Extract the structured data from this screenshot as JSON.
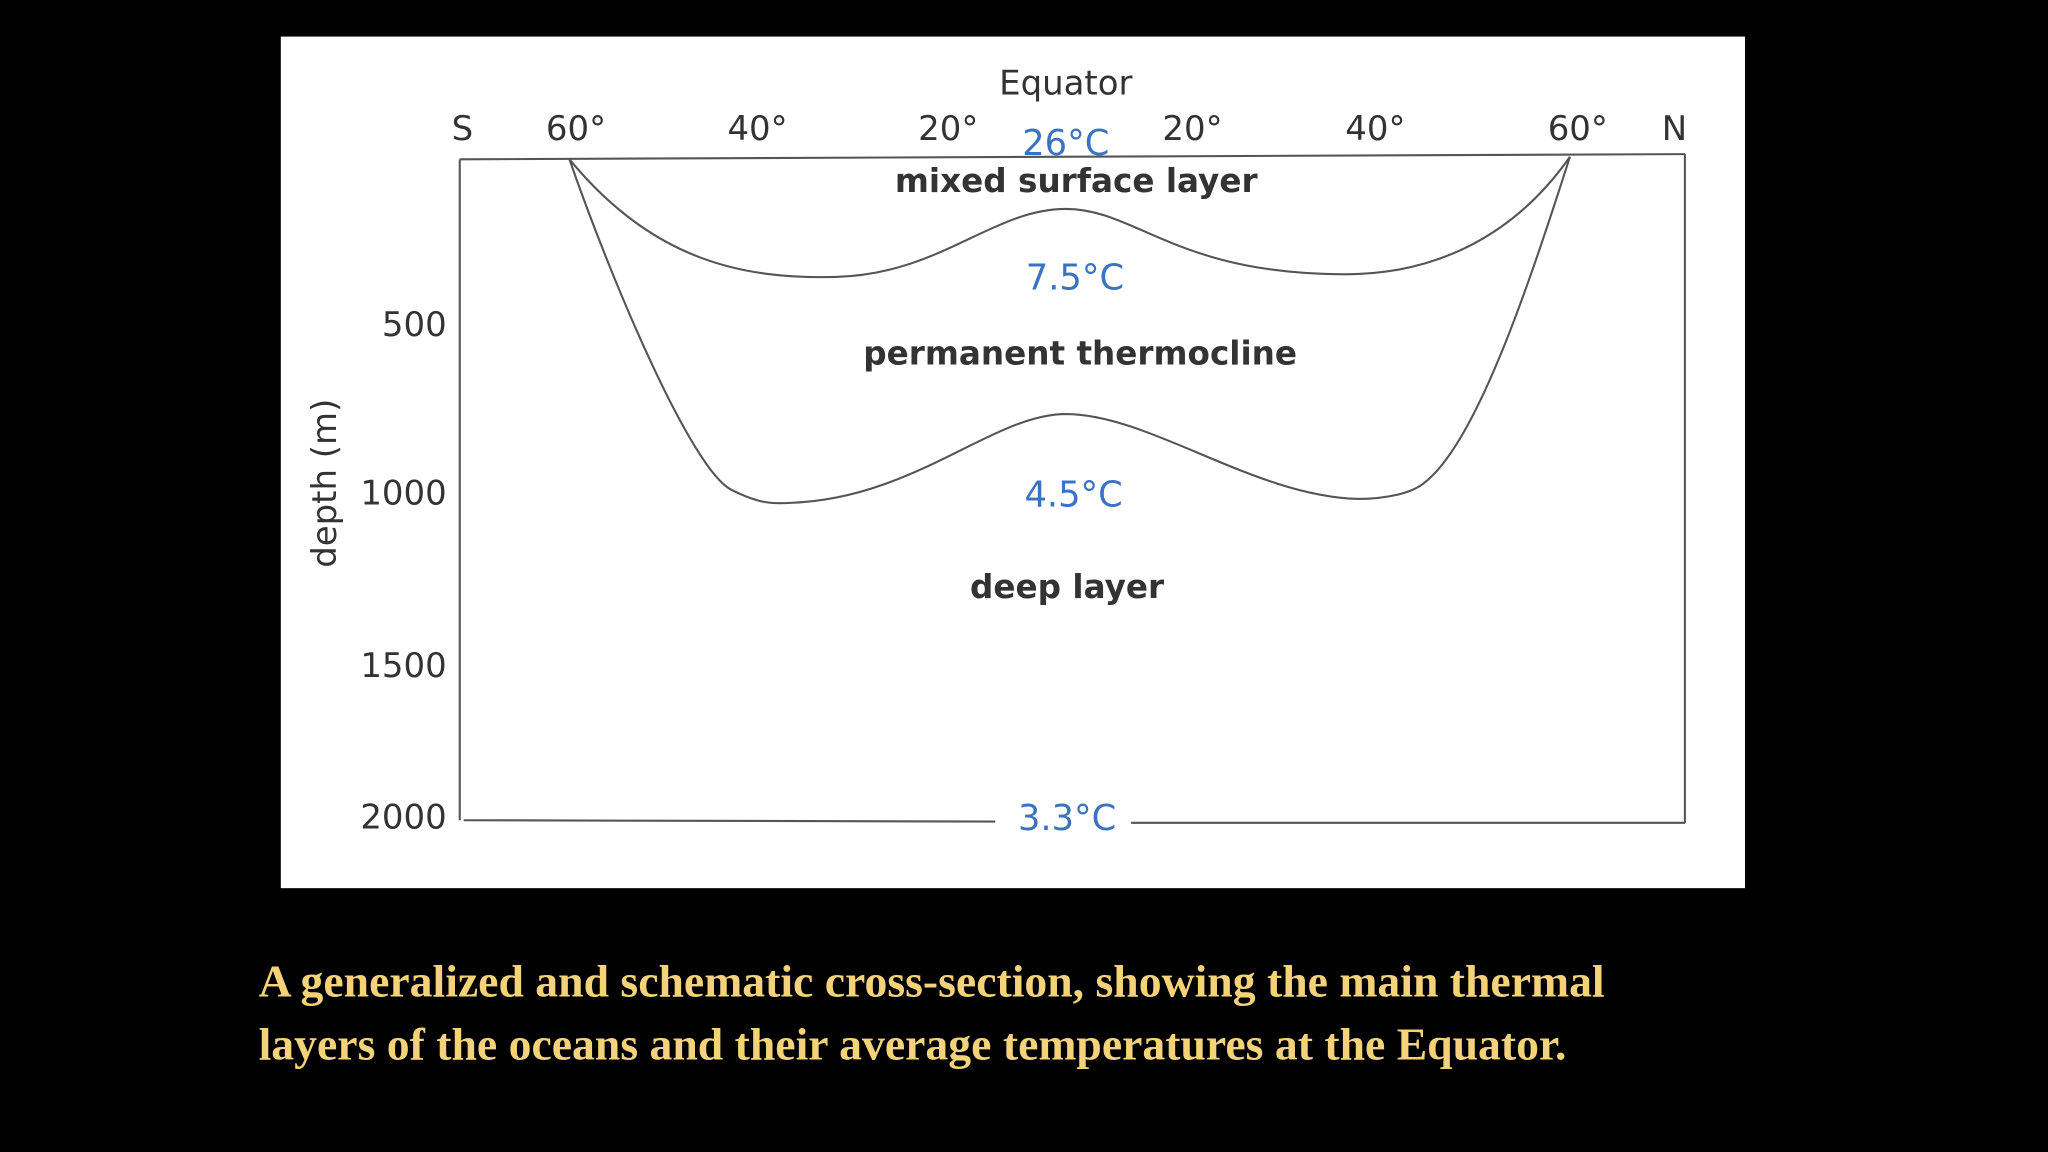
{
  "diagram": {
    "equator_label": "Equator",
    "latitude_labels": [
      "S",
      "60°",
      "40°",
      "20°",
      "20°",
      "40°",
      "60°",
      "N"
    ],
    "depth_axis": {
      "label": "depth (m)",
      "ticks": [
        "500",
        "1000",
        "1500",
        "2000"
      ]
    },
    "temperatures": {
      "surface": "26°C",
      "thermocline_top": "7.5°C",
      "thermocline_bottom": "4.5°C",
      "bottom": "3.3°C"
    },
    "layers": {
      "mixed": "mixed surface layer",
      "thermocline": "permanent thermocline",
      "deep": "deep layer"
    }
  },
  "caption": [
    "A generalized and schematic cross-section, showing the main thermal",
    "layers of the oceans and their average temperatures at the Equator."
  ]
}
